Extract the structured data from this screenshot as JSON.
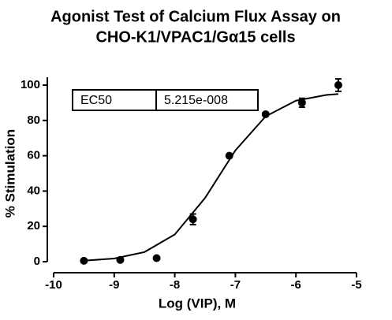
{
  "chart_data": {
    "type": "scatter",
    "title": [
      "Agonist Test of Calcium Flux Assay on",
      "CHO-K1/VPAC1/Gα15 cells"
    ],
    "x_label": "Log (VIP), M",
    "y_label": "% Stimulation",
    "x": [
      -9.5,
      -8.9,
      -8.3,
      -7.7,
      -7.1,
      -6.5,
      -5.9,
      -5.3
    ],
    "values": [
      0.5,
      1,
      2,
      24,
      60,
      83.5,
      90,
      100
    ],
    "errors": [
      0,
      0,
      0,
      3,
      0,
      0,
      2.5,
      3.5
    ],
    "color": "#000000",
    "fit": {
      "x": [
        -9.5,
        -9,
        -8.5,
        -8,
        -7.5,
        -7,
        -6.5,
        -6,
        -5.5,
        -5.3
      ],
      "values": [
        0.57,
        1.79,
        5.45,
        15.4,
        36.1,
        63,
        82.3,
        91.2,
        94.4,
        95
      ]
    },
    "annotation": {
      "label": "EC50",
      "value": "5.215e-008"
    },
    "xlim": [
      -10,
      -5
    ],
    "xticks": [
      -10,
      -9,
      -8,
      -7,
      -6,
      -5
    ],
    "ylim": [
      0,
      100
    ],
    "yticks": [
      0,
      20,
      40,
      60,
      80,
      100
    ]
  }
}
